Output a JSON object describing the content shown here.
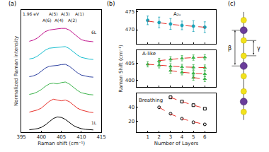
{
  "chart_data": [
    {
      "type": "line",
      "title": "(a)",
      "xlabel": "Raman shift (cm⁻¹)",
      "ylabel": "Normalized Raman intensity",
      "x": [
        397,
        398,
        399,
        400,
        401,
        402,
        403,
        404,
        405,
        406,
        407,
        408,
        409,
        410,
        411,
        412,
        413
      ],
      "series": [
        {
          "color": "#000000",
          "values": [
            0.15,
            0.18,
            0.22,
            0.3,
            0.45,
            0.65,
            0.85,
            0.95,
            0.92,
            0.8,
            0.6,
            0.42,
            0.3,
            0.22,
            0.18,
            0.15,
            0.14
          ]
        },
        {
          "color": "#e8302a",
          "values": [
            1.25,
            1.3,
            1.38,
            1.5,
            1.7,
            1.92,
            2.05,
            2.0,
            1.95,
            2.0,
            1.9,
            1.7,
            1.5,
            1.38,
            1.3,
            1.25,
            1.22
          ]
        },
        {
          "color": "#3cb44b",
          "values": [
            2.35,
            2.4,
            2.5,
            2.65,
            2.85,
            3.0,
            3.05,
            3.0,
            3.08,
            3.12,
            3.0,
            2.8,
            2.6,
            2.45,
            2.38,
            2.34,
            2.32
          ]
        },
        {
          "color": "#2b3fa0",
          "values": [
            3.45,
            3.5,
            3.6,
            3.78,
            3.98,
            4.1,
            4.12,
            4.15,
            4.2,
            4.22,
            4.1,
            3.9,
            3.7,
            3.55,
            3.48,
            3.44,
            3.42
          ]
        },
        {
          "color": "#17becf",
          "values": [
            4.55,
            4.6,
            4.72,
            4.9,
            5.1,
            5.22,
            5.25,
            5.25,
            5.3,
            5.32,
            5.2,
            5.0,
            4.8,
            4.65,
            4.58,
            4.54,
            4.52
          ]
        },
        {
          "color": "#c2188f",
          "values": [
            5.65,
            5.72,
            5.85,
            6.05,
            6.25,
            6.35,
            6.4,
            6.42,
            6.45,
            6.45,
            6.35,
            6.15,
            5.92,
            5.75,
            5.68,
            5.64,
            5.62
          ]
        }
      ],
      "xlim": [
        395,
        415
      ],
      "xticks": [
        395,
        400,
        405,
        410,
        415
      ],
      "ylim": [
        0,
        7.6
      ],
      "tick_labels": "x",
      "annotations": [
        {
          "text": "1.96 eV",
          "x": 397.5,
          "y": 7.35
        },
        {
          "text": "A(6)",
          "x": 401.5,
          "y": 6.95
        },
        {
          "text": "A(5)",
          "x": 403,
          "y": 7.35
        },
        {
          "text": "A(4)",
          "x": 404.5,
          "y": 6.95
        },
        {
          "text": "A(3)",
          "x": 406,
          "y": 7.35
        },
        {
          "text": "A(2)",
          "x": 407.8,
          "y": 6.95
        },
        {
          "text": "A(1)",
          "x": 409.5,
          "y": 7.35
        },
        {
          "text": "6L",
          "x": 413.3,
          "y": 6.2
        },
        {
          "text": "1L",
          "x": 413.3,
          "y": 0.6
        }
      ]
    },
    {
      "type": "scatter",
      "title": "(b)",
      "xlim": [
        0,
        7
      ],
      "xticks": [
        1,
        2,
        3,
        4,
        5,
        6
      ],
      "ylim": [
        466,
        475.5
      ],
      "yticks": [
        470,
        475
      ],
      "tick_labels": "y",
      "annotations": [
        {
          "text": "A₂ᵤ",
          "x": 3.6,
          "y": 474.3
        }
      ],
      "series": [
        {
          "type": "scatter",
          "color": "#17a2b8",
          "marker": "circle",
          "x": [
            1,
            2,
            3,
            4,
            5,
            6
          ],
          "values": [
            472.6,
            472.0,
            471.6,
            471.2,
            471.0,
            470.7
          ],
          "errors": [
            1.2,
            1.5,
            1.5,
            1.2,
            1.5,
            1.5
          ]
        },
        {
          "type": "line",
          "color": "#e8302a",
          "line_style": "dash",
          "x": [
            1,
            2,
            3,
            4,
            5,
            6
          ],
          "values": [
            472.4,
            471.9,
            471.5,
            471.2,
            470.9,
            470.7
          ]
        }
      ]
    },
    {
      "type": "scatter",
      "ylabel": "Raman Shift (cm⁻¹)",
      "xlim": [
        0,
        7
      ],
      "xticks": [
        1,
        2,
        3,
        4,
        5,
        6
      ],
      "ylim": [
        398,
        409
      ],
      "yticks": [
        400,
        405
      ],
      "tick_labels": "y",
      "annotations": [
        {
          "text": "A-like",
          "x": 1.1,
          "y": 408
        }
      ],
      "series": [
        {
          "type": "scatter",
          "color": "#3cb44b",
          "marker": "triangle-up",
          "x": [
            1,
            2,
            3,
            4,
            5,
            6
          ],
          "values": [
            404.8,
            404.5,
            404.2,
            404.0,
            403.9,
            403.8
          ],
          "errors": [
            0.8,
            0.8,
            0.8,
            0.8,
            0.8,
            0.8
          ]
        },
        {
          "type": "scatter",
          "color": "#3cb44b",
          "marker": "triangle-up",
          "x": [
            2,
            3,
            4,
            5,
            6
          ],
          "values": [
            405.8,
            406.3,
            406.6,
            406.8,
            406.9
          ],
          "errors": [
            0.8,
            0.8,
            0.8,
            0.8,
            0.8
          ]
        },
        {
          "type": "scatter",
          "color": "#3cb44b",
          "marker": "triangle-up",
          "x": [
            3,
            4,
            5,
            6
          ],
          "values": [
            402.9,
            402.4,
            402.1,
            401.9
          ],
          "errors": [
            0.8,
            0.8,
            0.8,
            0.8
          ]
        },
        {
          "type": "scatter",
          "color": "#3cb44b",
          "marker": "triangle-up",
          "x": [
            5,
            6
          ],
          "values": [
            400.8,
            400.4
          ],
          "errors": [
            0.8,
            0.8
          ]
        },
        {
          "type": "line",
          "color": "#e8302a",
          "line_style": "dash",
          "x": [
            1,
            2,
            3,
            4,
            5,
            6
          ],
          "values": [
            404.8,
            404.5,
            404.2,
            404.0,
            403.9,
            403.8
          ]
        },
        {
          "type": "line",
          "color": "#e8302a",
          "line_style": "dash",
          "x": [
            2,
            3,
            4,
            5,
            6
          ],
          "values": [
            405.9,
            406.3,
            406.6,
            406.8,
            406.9
          ]
        },
        {
          "type": "line",
          "color": "#e8302a",
          "line_style": "dash",
          "x": [
            3,
            4,
            5,
            6
          ],
          "values": [
            402.9,
            402.4,
            402.1,
            401.9
          ]
        },
        {
          "type": "line",
          "color": "#e8302a",
          "line_style": "dash",
          "x": [
            5,
            6
          ],
          "values": [
            400.8,
            400.4
          ]
        }
      ]
    },
    {
      "type": "scatter",
      "xlabel": "Number of Layers",
      "xlim": [
        0,
        7
      ],
      "xticks": [
        1,
        2,
        3,
        4,
        5,
        6
      ],
      "ylim": [
        5,
        60
      ],
      "yticks": [
        20,
        40
      ],
      "annotations": [
        {
          "text": "Breathing",
          "x": 1.3,
          "y": 50
        }
      ],
      "series": [
        {
          "type": "scatter",
          "color": "#000000",
          "marker": "circle-open",
          "x": [
            2,
            3,
            4,
            5,
            6
          ],
          "values": [
            40,
            31,
            24,
            19,
            16
          ]
        },
        {
          "type": "scatter",
          "color": "#000000",
          "marker": "square-open",
          "x": [
            3,
            4,
            5,
            6
          ],
          "values": [
            54,
            48,
            43,
            38
          ]
        },
        {
          "type": "line",
          "color": "#e8302a",
          "line_style": "dash",
          "x": [
            2,
            3,
            4,
            5,
            6
          ],
          "values": [
            40,
            30.5,
            24,
            19.5,
            16
          ]
        },
        {
          "type": "line",
          "color": "#e8302a",
          "line_style": "dash",
          "x": [
            3,
            4,
            5,
            6
          ],
          "values": [
            54,
            48,
            43,
            38.5
          ]
        }
      ]
    }
  ],
  "diagram": {
    "title": "(c)",
    "labels": [
      "β",
      "γ"
    ]
  }
}
